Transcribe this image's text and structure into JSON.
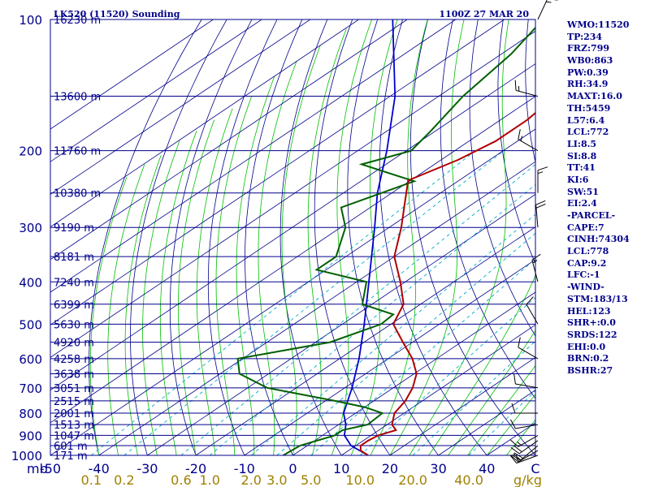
{
  "header": {
    "station": "LK520 (11520) Sounding",
    "time": "1100Z 27 MAR 20"
  },
  "indices": [
    "WMO:11520",
    "TP:234",
    "FRZ:799",
    "WB0:863",
    "PW:0.39",
    "RH:34.9",
    "MAXT:16.0",
    "TH:5459",
    "L57:6.4",
    "LCL:772",
    "LI:8.5",
    "SI:8.8",
    "TT:41",
    "KI:6",
    "SW:51",
    "EI:2.4",
    "-PARCEL-",
    "CAPE:7",
    "CINH:74304",
    "LCL:778",
    "CAP:9.2",
    "LFC:-1",
    "-WIND-",
    "STM:183/13",
    "HEL:123",
    "SHR+:0.0",
    "SRDS:122",
    "EHI:0.0",
    "BRN:0.2",
    "BSHR:27"
  ],
  "colors": {
    "axis": "#00008b",
    "isotherm": "#00008b",
    "dry_adiabat": "#00008b",
    "moist_adiabat": "#00c000",
    "mixing_ratio": "#00aacc",
    "temperature": "#b00000",
    "dewpoint": "#006000",
    "parcel": "#0000cd",
    "wind_barb": "#000000",
    "mixing_label": "#a08000"
  },
  "chart_data": {
    "type": "skew-t",
    "x_unit_label": "mb",
    "x_end_label": "C",
    "mixing_unit_label": "g/kg",
    "xlim": [
      -50,
      50
    ],
    "ylim": [
      1000,
      100
    ],
    "pressure_levels": [
      {
        "p": 100,
        "label": "100",
        "height": "16230 m"
      },
      {
        "p": 150,
        "label": "",
        "height": "13600 m"
      },
      {
        "p": 200,
        "label": "200",
        "height": "11760 m"
      },
      {
        "p": 250,
        "label": "",
        "height": "10380 m"
      },
      {
        "p": 300,
        "label": "300",
        "height": "9190 m"
      },
      {
        "p": 350,
        "label": "",
        "height": "8181 m"
      },
      {
        "p": 400,
        "label": "400",
        "height": "7240 m"
      },
      {
        "p": 450,
        "label": "",
        "height": "6399 m"
      },
      {
        "p": 500,
        "label": "500",
        "height": "5630 m"
      },
      {
        "p": 550,
        "label": "",
        "height": "4920 m"
      },
      {
        "p": 600,
        "label": "600",
        "height": "4258 m"
      },
      {
        "p": 650,
        "label": "",
        "height": "3638 m"
      },
      {
        "p": 700,
        "label": "700",
        "height": "3051 m"
      },
      {
        "p": 750,
        "label": "",
        "height": "2515 m"
      },
      {
        "p": 800,
        "label": "800",
        "height": "2001 m"
      },
      {
        "p": 850,
        "label": "",
        "height": "1513 m"
      },
      {
        "p": 900,
        "label": "900",
        "height": "1047 m"
      },
      {
        "p": 950,
        "label": "",
        "height": "601 m"
      },
      {
        "p": 1000,
        "label": "1000",
        "height": "171 m"
      }
    ],
    "temperature_ticks": [
      {
        "t": -50,
        "label": "-50"
      },
      {
        "t": -40,
        "label": "-40"
      },
      {
        "t": -30,
        "label": "-30"
      },
      {
        "t": -20,
        "label": "-20"
      },
      {
        "t": -10,
        "label": "-10"
      },
      {
        "t": 0,
        "label": "0"
      },
      {
        "t": 10,
        "label": "10"
      },
      {
        "t": 20,
        "label": "20"
      },
      {
        "t": 30,
        "label": "30"
      },
      {
        "t": 40,
        "label": "40"
      }
    ],
    "mixing_ratios": [
      {
        "w": 0.1,
        "label": "0.1"
      },
      {
        "w": 0.2,
        "label": "0.2"
      },
      {
        "w": 0.6,
        "label": "0.6"
      },
      {
        "w": 1.0,
        "label": "1.0"
      },
      {
        "w": 2.0,
        "label": "2.0"
      },
      {
        "w": 3.0,
        "label": "3.0"
      },
      {
        "w": 5.0,
        "label": "5.0"
      },
      {
        "w": 10.0,
        "label": "10.0"
      },
      {
        "w": 20.0,
        "label": "20.0"
      },
      {
        "w": 40.0,
        "label": "40.0"
      }
    ],
    "temperature_profile": [
      {
        "p": 1000,
        "t": 15.5
      },
      {
        "p": 975,
        "t": 12.5
      },
      {
        "p": 950,
        "t": 11.0
      },
      {
        "p": 925,
        "t": 11.0
      },
      {
        "p": 900,
        "t": 11.5
      },
      {
        "p": 875,
        "t": 13.5
      },
      {
        "p": 850,
        "t": 11.0
      },
      {
        "p": 800,
        "t": 8.0
      },
      {
        "p": 750,
        "t": 6.5
      },
      {
        "p": 700,
        "t": 4.0
      },
      {
        "p": 650,
        "t": 0.5
      },
      {
        "p": 600,
        "t": -5.0
      },
      {
        "p": 550,
        "t": -12.0
      },
      {
        "p": 500,
        "t": -19.5
      },
      {
        "p": 450,
        "t": -23.5
      },
      {
        "p": 400,
        "t": -31.0
      },
      {
        "p": 350,
        "t": -40.0
      },
      {
        "p": 300,
        "t": -47.5
      },
      {
        "p": 260,
        "t": -55.0
      },
      {
        "p": 234,
        "t": -60.5
      },
      {
        "p": 210,
        "t": -56.5
      },
      {
        "p": 190,
        "t": -54.5
      },
      {
        "p": 170,
        "t": -54.5
      },
      {
        "p": 150,
        "t": -56.0
      },
      {
        "p": 130,
        "t": -57.5
      },
      {
        "p": 115,
        "t": -59.5
      },
      {
        "p": 100,
        "t": -63.0
      }
    ],
    "dewpoint_profile": [
      {
        "p": 1000,
        "t": -2.0
      },
      {
        "p": 950,
        "t": -1.5
      },
      {
        "p": 900,
        "t": 2.5
      },
      {
        "p": 875,
        "t": 2.5
      },
      {
        "p": 850,
        "t": 6.0
      },
      {
        "p": 800,
        "t": 5.5
      },
      {
        "p": 775,
        "t": 0.0
      },
      {
        "p": 750,
        "t": -8.0
      },
      {
        "p": 700,
        "t": -26.0
      },
      {
        "p": 650,
        "t": -36.0
      },
      {
        "p": 600,
        "t": -41.0
      },
      {
        "p": 550,
        "t": -27.0
      },
      {
        "p": 500,
        "t": -22.0
      },
      {
        "p": 475,
        "t": -22.5
      },
      {
        "p": 450,
        "t": -32.0
      },
      {
        "p": 400,
        "t": -38.0
      },
      {
        "p": 375,
        "t": -52.0
      },
      {
        "p": 350,
        "t": -52.0
      },
      {
        "p": 300,
        "t": -59.0
      },
      {
        "p": 270,
        "t": -66.0
      },
      {
        "p": 235,
        "t": -59.0
      },
      {
        "p": 215,
        "t": -75.0
      },
      {
        "p": 200,
        "t": -69.0
      },
      {
        "p": 180,
        "t": -71.0
      },
      {
        "p": 150,
        "t": -75.0
      },
      {
        "p": 120,
        "t": -78.0
      },
      {
        "p": 100,
        "t": -82.0
      }
    ],
    "parcel_profile": [
      {
        "p": 1000,
        "t": 15.5
      },
      {
        "p": 950,
        "t": 9.0
      },
      {
        "p": 900,
        "t": 4.5
      },
      {
        "p": 850,
        "t": 1.5
      },
      {
        "p": 800,
        "t": -2.5
      },
      {
        "p": 700,
        "t": -8.5
      },
      {
        "p": 600,
        "t": -16.0
      },
      {
        "p": 500,
        "t": -25.5
      },
      {
        "p": 400,
        "t": -37.5
      },
      {
        "p": 300,
        "t": -53.0
      },
      {
        "p": 250,
        "t": -63.0
      },
      {
        "p": 200,
        "t": -74.0
      },
      {
        "p": 150,
        "t": -89.0
      },
      {
        "p": 100,
        "t": -113.0
      }
    ],
    "wind_barbs": [
      {
        "p": 1000,
        "dir": 250,
        "kt": 15
      },
      {
        "p": 975,
        "dir": 240,
        "kt": 20
      },
      {
        "p": 950,
        "dir": 230,
        "kt": 20
      },
      {
        "p": 925,
        "dir": 235,
        "kt": 20
      },
      {
        "p": 900,
        "dir": 240,
        "kt": 15
      },
      {
        "p": 850,
        "dir": 260,
        "kt": 10
      },
      {
        "p": 800,
        "dir": 270,
        "kt": 10
      },
      {
        "p": 700,
        "dir": 280,
        "kt": 10
      },
      {
        "p": 600,
        "dir": 300,
        "kt": 10
      },
      {
        "p": 500,
        "dir": 330,
        "kt": 10
      },
      {
        "p": 400,
        "dir": 345,
        "kt": 15
      },
      {
        "p": 300,
        "dir": 355,
        "kt": 20
      },
      {
        "p": 250,
        "dir": 0,
        "kt": 15
      },
      {
        "p": 200,
        "dir": 300,
        "kt": 15
      },
      {
        "p": 150,
        "dir": 285,
        "kt": 15
      },
      {
        "p": 100,
        "dir": 25,
        "kt": 15
      }
    ]
  }
}
